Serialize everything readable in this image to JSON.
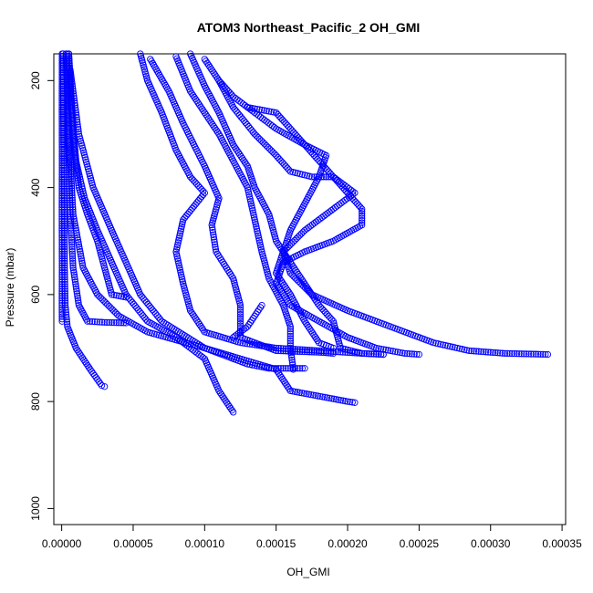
{
  "chart_data": {
    "type": "scatter",
    "title": "ATOM3 Northeast_Pacific_2 OH_GMI",
    "xlabel": "OH_GMI",
    "ylabel": "Pressure (mbar)",
    "xlim": [
      -5.5e-06,
      0.0003525
    ],
    "ylim": [
      1030,
      150
    ],
    "y_reversed": true,
    "grid": false,
    "legend": "none",
    "marker": "open-circle",
    "color": "#0000ff",
    "x_ticks": [
      "0.00000",
      "0.00005",
      "0.00010",
      "0.00015",
      "0.00020",
      "0.00025",
      "0.00030",
      "0.00035"
    ],
    "x_tick_values": [
      0,
      5e-05,
      0.0001,
      0.00015,
      0.0002,
      0.00025,
      0.0003,
      0.00035
    ],
    "y_ticks": [
      "200",
      "400",
      "600",
      "800",
      "1000"
    ],
    "y_tick_values": [
      200,
      400,
      600,
      800,
      1000
    ],
    "series": [
      {
        "values": [
          [
            3e-07,
            150
          ],
          [
            2e-07,
            250
          ],
          [
            3e-07,
            350
          ],
          [
            2e-07,
            450
          ],
          [
            3e-07,
            550
          ],
          [
            2e-07,
            620
          ],
          [
            3e-07,
            650
          ]
        ]
      },
      {
        "values": [
          [
            1e-06,
            150
          ],
          [
            1.2e-06,
            250
          ],
          [
            1.5e-06,
            350
          ],
          [
            1.8e-06,
            450
          ],
          [
            2e-06,
            550
          ],
          [
            2.5e-06,
            620
          ],
          [
            4e-06,
            660
          ],
          [
            1e-05,
            700
          ],
          [
            2e-05,
            740
          ],
          [
            2.8e-05,
            770
          ],
          [
            3e-05,
            772
          ]
        ]
      },
      {
        "values": [
          [
            4e-06,
            150
          ],
          [
            4e-06,
            250
          ],
          [
            5e-06,
            350
          ],
          [
            6e-06,
            450
          ],
          [
            8e-06,
            550
          ],
          [
            1.2e-05,
            620
          ],
          [
            1.8e-05,
            650
          ],
          [
            3e-05,
            652
          ],
          [
            4.5e-05,
            653
          ]
        ]
      },
      {
        "values": [
          [
            5e-06,
            150
          ],
          [
            6e-06,
            200
          ],
          [
            8e-06,
            300
          ],
          [
            1.2e-05,
            400
          ],
          [
            1.8e-05,
            450
          ],
          [
            2.5e-05,
            500
          ],
          [
            3e-05,
            550
          ],
          [
            3.5e-05,
            600
          ],
          [
            4.5e-05,
            605
          ]
        ]
      },
      {
        "values": [
          [
            5e-06,
            150
          ],
          [
            7e-06,
            250
          ],
          [
            1e-05,
            350
          ],
          [
            1.6e-05,
            420
          ],
          [
            2.5e-05,
            480
          ],
          [
            3.5e-05,
            540
          ],
          [
            4.5e-05,
            600
          ],
          [
            6e-05,
            650
          ],
          [
            8e-05,
            680
          ],
          [
            0.0001,
            720
          ],
          [
            0.00011,
            780
          ],
          [
            0.00012,
            820
          ]
        ]
      },
      {
        "values": [
          [
            3e-06,
            150
          ],
          [
            5e-06,
            300
          ],
          [
            8e-06,
            450
          ],
          [
            1.5e-05,
            550
          ],
          [
            2.5e-05,
            600
          ],
          [
            4e-05,
            640
          ],
          [
            6e-05,
            670
          ],
          [
            0.0001,
            700
          ],
          [
            0.00013,
            730
          ],
          [
            0.000145,
            738
          ],
          [
            0.00017,
            738
          ]
        ]
      },
      {
        "values": [
          [
            6e-06,
            180
          ],
          [
            1.2e-05,
            300
          ],
          [
            2.2e-05,
            400
          ],
          [
            3.5e-05,
            480
          ],
          [
            4.5e-05,
            540
          ],
          [
            5.5e-05,
            600
          ],
          [
            7e-05,
            650
          ],
          [
            0.0001,
            700
          ],
          [
            0.00015,
            740
          ],
          [
            0.00016,
            780
          ],
          [
            0.0002,
            800
          ],
          [
            0.000205,
            802
          ]
        ]
      },
      {
        "values": [
          [
            5.5e-05,
            150
          ],
          [
            6e-05,
            200
          ],
          [
            7e-05,
            260
          ],
          [
            8e-05,
            330
          ],
          [
            9e-05,
            380
          ],
          [
            0.0001,
            410
          ],
          [
            8.5e-05,
            460
          ],
          [
            8e-05,
            520
          ],
          [
            8.5e-05,
            580
          ],
          [
            9e-05,
            630
          ],
          [
            0.0001,
            670
          ],
          [
            0.000125,
            690
          ],
          [
            0.00015,
            700
          ],
          [
            0.00018,
            705
          ],
          [
            0.00021,
            710
          ],
          [
            0.000225,
            712
          ]
        ]
      },
      {
        "values": [
          [
            6.2e-05,
            160
          ],
          [
            7.5e-05,
            220
          ],
          [
            8.5e-05,
            280
          ],
          [
            0.0001,
            360
          ],
          [
            0.00011,
            420
          ],
          [
            0.000105,
            470
          ],
          [
            0.000108,
            520
          ],
          [
            0.00012,
            570
          ],
          [
            0.000125,
            620
          ],
          [
            0.000125,
            680
          ],
          [
            0.00015,
            705
          ],
          [
            0.00018,
            708
          ],
          [
            0.00019,
            710
          ]
        ]
      },
      {
        "values": [
          [
            8e-05,
            155
          ],
          [
            9e-05,
            220
          ],
          [
            0.00011,
            300
          ],
          [
            0.00012,
            350
          ],
          [
            0.00013,
            400
          ],
          [
            0.000135,
            460
          ],
          [
            0.00014,
            520
          ],
          [
            0.000145,
            570
          ],
          [
            0.000155,
            620
          ],
          [
            0.00016,
            660
          ],
          [
            0.00016,
            700
          ],
          [
            0.000162,
            740
          ]
        ]
      },
      {
        "values": [
          [
            9e-05,
            150
          ],
          [
            0.0001,
            210
          ],
          [
            0.00011,
            260
          ],
          [
            0.00012,
            320
          ],
          [
            0.00013,
            360
          ],
          [
            0.000135,
            400
          ],
          [
            0.000145,
            450
          ],
          [
            0.00015,
            500
          ],
          [
            0.00016,
            540
          ],
          [
            0.00017,
            580
          ],
          [
            0.00018,
            620
          ],
          [
            0.00019,
            650
          ],
          [
            0.000195,
            700
          ],
          [
            0.00021,
            710
          ],
          [
            0.000225,
            712
          ]
        ]
      },
      {
        "values": [
          [
            0.0001,
            160
          ],
          [
            0.00011,
            200
          ],
          [
            0.00012,
            250
          ],
          [
            0.000135,
            300
          ],
          [
            0.00015,
            340
          ],
          [
            0.00016,
            370
          ],
          [
            0.000175,
            380
          ],
          [
            0.00019,
            380
          ],
          [
            0.000205,
            410
          ],
          [
            0.00019,
            440
          ],
          [
            0.00017,
            480
          ],
          [
            0.000155,
            520
          ],
          [
            0.00015,
            560
          ],
          [
            0.00016,
            600
          ],
          [
            0.00017,
            650
          ],
          [
            0.00018,
            690
          ],
          [
            0.00019,
            700
          ]
        ]
      },
      {
        "values": [
          [
            0.00011,
            200
          ],
          [
            0.00012,
            230
          ],
          [
            0.000135,
            260
          ],
          [
            0.00015,
            290
          ],
          [
            0.00017,
            320
          ],
          [
            0.000185,
            340
          ],
          [
            0.00018,
            380
          ],
          [
            0.00017,
            430
          ],
          [
            0.00016,
            480
          ],
          [
            0.000155,
            520
          ],
          [
            0.00016,
            560
          ],
          [
            0.000175,
            600
          ],
          [
            0.0002,
            630
          ],
          [
            0.00023,
            660
          ],
          [
            0.00026,
            690
          ],
          [
            0.000285,
            705
          ],
          [
            0.00031,
            710
          ],
          [
            0.00034,
            712
          ]
        ]
      },
      {
        "values": [
          [
            0.00013,
            250
          ],
          [
            0.00015,
            260
          ],
          [
            0.00017,
            320
          ],
          [
            0.00019,
            380
          ],
          [
            0.00021,
            440
          ],
          [
            0.00021,
            470
          ],
          [
            0.00019,
            500
          ],
          [
            0.00017,
            520
          ],
          [
            0.000155,
            540
          ],
          [
            0.00015,
            580
          ],
          [
            0.00016,
            620
          ],
          [
            0.00018,
            650
          ],
          [
            0.0002,
            680
          ],
          [
            0.00022,
            700
          ],
          [
            0.00024,
            710
          ],
          [
            0.00025,
            712
          ]
        ]
      },
      {
        "values": [
          [
            0.00012,
            680
          ],
          [
            0.00013,
            660
          ],
          [
            0.000135,
            640
          ],
          [
            0.00014,
            620
          ]
        ]
      }
    ]
  }
}
